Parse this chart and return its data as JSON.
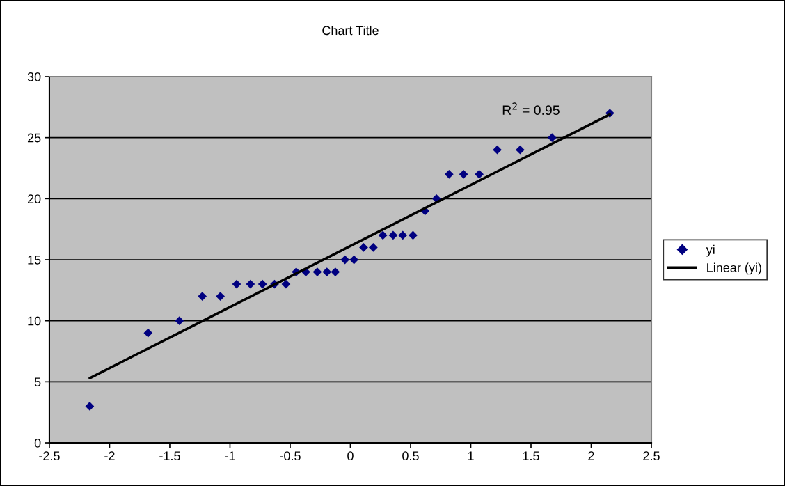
{
  "chart_data": {
    "type": "scatter",
    "title": "Chart Title",
    "x": [
      -2.165,
      -1.68,
      -1.42,
      -1.23,
      -1.08,
      -0.945,
      -0.83,
      -0.73,
      -0.63,
      -0.535,
      -0.45,
      -0.37,
      -0.275,
      -0.195,
      -0.125,
      -0.045,
      0.03,
      0.11,
      0.19,
      0.27,
      0.355,
      0.435,
      0.52,
      0.62,
      0.715,
      0.82,
      0.94,
      1.07,
      1.22,
      1.41,
      1.675,
      2.155
    ],
    "series": [
      {
        "name": "yi",
        "color": "#000080",
        "values": [
          3,
          9,
          10,
          12,
          12,
          13,
          13,
          13,
          13,
          13,
          14,
          14,
          14,
          14,
          14,
          15,
          15,
          16,
          16,
          17,
          17,
          17,
          17,
          19,
          20,
          22,
          22,
          22,
          24,
          24,
          25,
          27
        ]
      },
      {
        "name": "Linear (yi)",
        "type": "line",
        "color": "#000000",
        "marker": "none",
        "line_style": "solid",
        "x": [
          -2.165,
          2.155
        ],
        "values": [
          5.3,
          26.9
        ]
      }
    ],
    "annotations": [
      "R$^{2}$ = 0.95"
    ],
    "marker": "diamond",
    "xlim": [
      -2.5,
      2.5
    ],
    "xticks": [
      -2.5,
      -2,
      -1.5,
      -1,
      -0.5,
      0,
      0.5,
      1,
      1.5,
      2,
      2.5
    ],
    "ylim": [
      0,
      30
    ],
    "yticks": [
      0,
      5,
      10,
      15,
      20,
      25,
      30
    ],
    "grid": "y",
    "legend": "right"
  }
}
